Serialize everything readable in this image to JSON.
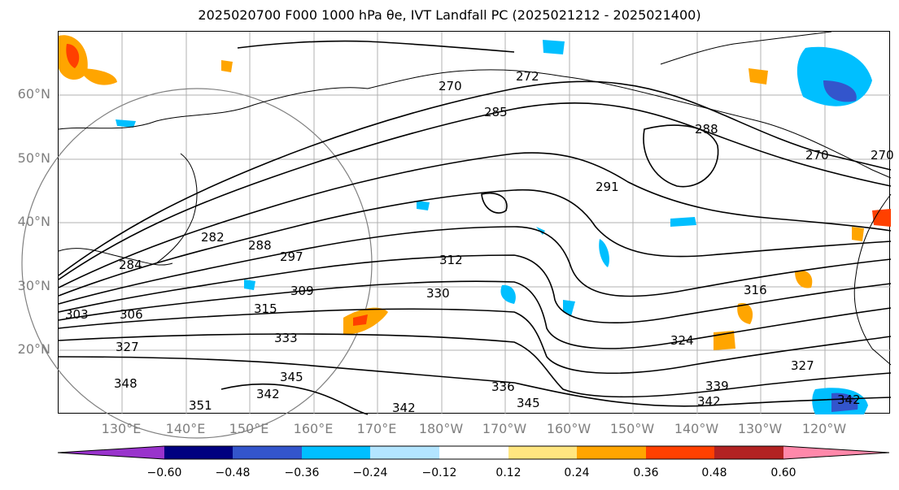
{
  "title": "2025020700 F000 1000 hPa θe, IVT Landfall PC (2025021212 - 2025021400)",
  "map": {
    "lat_labels": [
      "60°N",
      "50°N",
      "40°N",
      "30°N",
      "20°N"
    ],
    "lon_labels": [
      "130°E",
      "140°E",
      "150°E",
      "160°E",
      "170°E",
      "180°W",
      "170°W",
      "160°W",
      "150°W",
      "140°W",
      "130°W",
      "120°W"
    ],
    "contour_labels": [
      "270",
      "272",
      "285",
      "288",
      "270",
      "270",
      "291",
      "282",
      "288",
      "297",
      "312",
      "284",
      "309",
      "330",
      "316",
      "303",
      "306",
      "315",
      "333",
      "327",
      "324",
      "327",
      "348",
      "345",
      "342",
      "336",
      "339",
      "342",
      "351",
      "342",
      "345",
      "342"
    ],
    "colors": {
      "land_outline": "#000000",
      "grid": "#b0b0b0",
      "contour": "#000000",
      "range_ring": "#808080"
    }
  },
  "colorbar": {
    "colors": [
      "#9933cc",
      "#000080",
      "#3355cc",
      "#00bfff",
      "#b3e5ff",
      "#ffffff",
      "#ffe680",
      "#ffa500",
      "#ff4000",
      "#b22222",
      "#ff88aa"
    ],
    "tick_labels": [
      "−0.60",
      "−0.48",
      "−0.36",
      "−0.24",
      "−0.12",
      "0.12",
      "0.24",
      "0.36",
      "0.48",
      "0.60"
    ]
  }
}
